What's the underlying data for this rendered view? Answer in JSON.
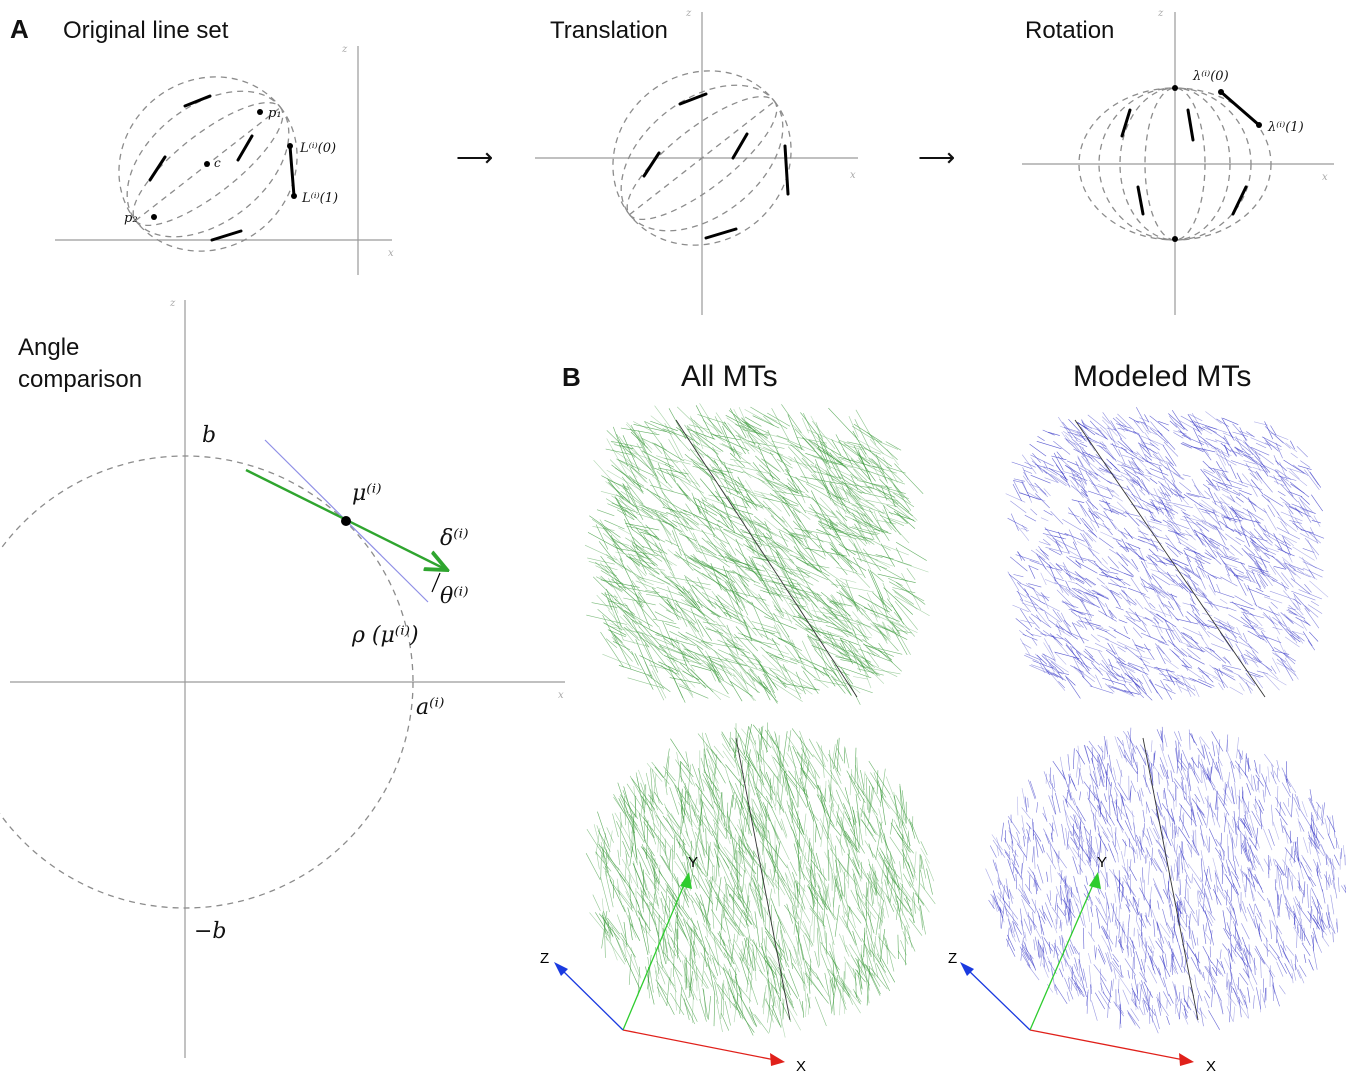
{
  "panelA": {
    "letter": "A",
    "titles": {
      "original": "Original line set",
      "translation": "Translation",
      "rotation": "Rotation",
      "angle_line1": "Angle",
      "angle_line2": "comparison"
    },
    "arrow": "⟶",
    "axis_labels": {
      "x": "x",
      "z": "z"
    },
    "math_labels": {
      "p1": "p₁",
      "p2": "p₂",
      "c": "c",
      "L0": "L⁽ⁱ⁾(0)",
      "L1": "L⁽ⁱ⁾(1)",
      "lam0": "λ⁽ⁱ⁾(0)",
      "lam1": "λ⁽ⁱ⁾(1)",
      "b": "b",
      "neg_b": "−b",
      "a": "a⁽ⁱ⁾",
      "mu": "μ⁽ⁱ⁾",
      "delta": "δ⁽ⁱ⁾",
      "theta": "θ⁽ⁱ⁾",
      "rho": "ρ (μ⁽ⁱ⁾)"
    }
  },
  "panelB": {
    "letter": "B",
    "col1": "All MTs",
    "col2": "Modeled MTs",
    "axes": {
      "x": "X",
      "y": "Y",
      "z": "Z"
    },
    "colors": {
      "all": "#3a9a3a",
      "modeled": "#3c3cc8",
      "x_axis": "#e0201a",
      "y_axis": "#2ecc2e",
      "z_axis": "#1a3ae0"
    }
  }
}
